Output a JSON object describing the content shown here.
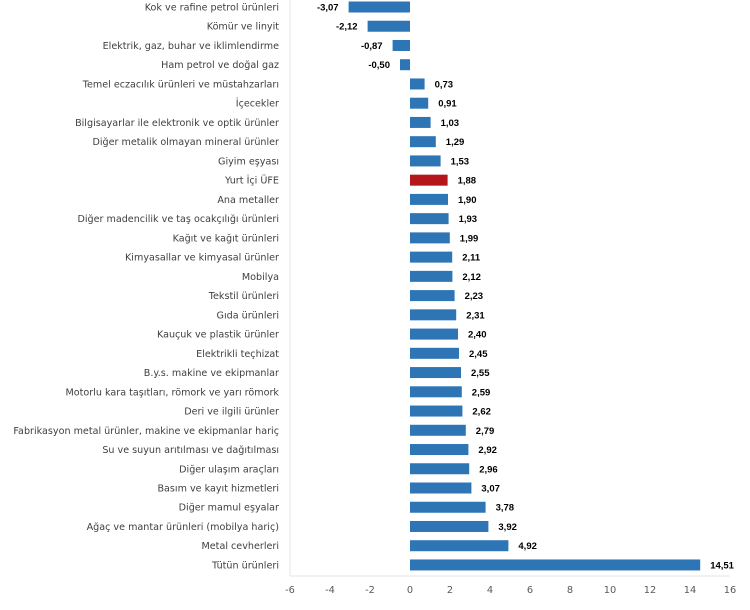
{
  "chart_data": {
    "type": "bar",
    "orientation": "horizontal",
    "title": "",
    "xlabel": "",
    "ylabel": "",
    "xlim": [
      -6,
      16
    ],
    "xticks": [
      -6,
      -4,
      -2,
      0,
      2,
      4,
      6,
      8,
      10,
      12,
      14,
      16
    ],
    "xtick_labels": [
      "-6",
      "-4",
      "-2",
      "0",
      "2",
      "4",
      "6",
      "8",
      "10",
      "12",
      "14",
      "16"
    ],
    "grid": false,
    "legend": "none",
    "default_color": "#2e75b6",
    "highlight_color": "#b3161b",
    "highlight_category": "Yurt İçi ÜFE",
    "categories": [
      "Kok ve rafine petrol ürünleri",
      "Kömür ve linyit",
      "Elektrik, gaz, buhar ve iklimlendirme",
      "Ham petrol ve doğal gaz",
      "Temel eczacılık ürünleri ve müstahzarları",
      "İçecekler",
      "Bilgisayarlar ile elektronik ve optik ürünler",
      "Diğer metalik olmayan mineral ürünler",
      "Giyim eşyası",
      "Yurt İçi ÜFE",
      "Ana metaller",
      "Diğer madencilik ve taş ocakçılığı ürünleri",
      "Kağıt ve kağıt ürünleri",
      "Kimyasallar ve kimyasal ürünler",
      "Mobilya",
      "Tekstil ürünleri",
      "Gıda ürünleri",
      "Kauçuk ve plastik ürünler",
      "Elektrikli teçhizat",
      "B.y.s. makine ve ekipmanlar",
      "Motorlu kara taşıtları, römork ve yarı römork",
      "Deri ve ilgili ürünler",
      "Fabrikasyon metal ürünler, makine ve ekipmanlar hariç",
      "Su ve suyun arıtılması ve dağıtılması",
      "Diğer ulaşım araçları",
      "Basım ve kayıt hizmetleri",
      "Diğer mamul eşyalar",
      "Ağaç ve mantar ürünleri (mobilya hariç)",
      "Metal cevherleri",
      "Tütün ürünleri"
    ],
    "values": [
      -3.07,
      -2.12,
      -0.87,
      -0.5,
      0.73,
      0.91,
      1.03,
      1.29,
      1.53,
      1.88,
      1.9,
      1.93,
      1.99,
      2.11,
      2.12,
      2.23,
      2.31,
      2.4,
      2.45,
      2.55,
      2.59,
      2.62,
      2.79,
      2.92,
      2.96,
      3.07,
      3.78,
      3.92,
      4.92,
      14.51
    ],
    "value_labels": [
      "-3,07",
      "-2,12",
      "-0,87",
      "-0,50",
      "0,73",
      "0,91",
      "1,03",
      "1,29",
      "1,53",
      "1,88",
      "1,90",
      "1,93",
      "1,99",
      "2,11",
      "2,12",
      "2,23",
      "2,31",
      "2,40",
      "2,45",
      "2,55",
      "2,59",
      "2,62",
      "2,79",
      "2,92",
      "2,96",
      "3,07",
      "3,78",
      "3,92",
      "4,92",
      "14,51"
    ]
  }
}
